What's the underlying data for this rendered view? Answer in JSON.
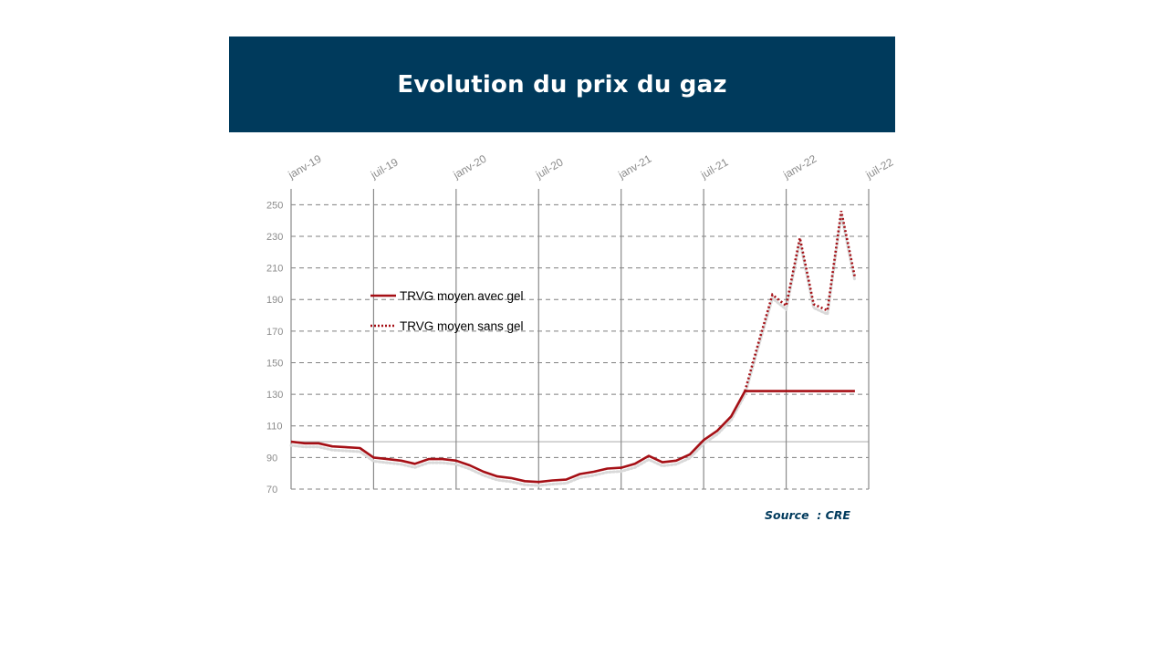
{
  "slide": {
    "title": "Evolution du prix du gaz",
    "source": "Source  : CRE"
  },
  "colors": {
    "banner": "#003a5c",
    "series": "#a50f15",
    "shadow": "#d9d9d9",
    "grid": "#7f7f7f",
    "tick_text": "#8c8c8c"
  },
  "chart_data": {
    "type": "line",
    "title": "",
    "xlabel": "",
    "ylabel": "",
    "x_ticks": [
      "janv-19",
      "juil-19",
      "janv-20",
      "juil-20",
      "janv-21",
      "juil-21",
      "janv-22",
      "juil-22"
    ],
    "x_range": [
      "2019-01",
      "2022-07"
    ],
    "ylim": [
      70,
      260
    ],
    "y_ticks": [
      70,
      90,
      110,
      130,
      150,
      170,
      190,
      210,
      230,
      250
    ],
    "reference_line": 100,
    "grid": true,
    "x_axis_position": "top",
    "legend_position": "left-center",
    "series": [
      {
        "name": "TRVG moyen avec gel",
        "style": "solid",
        "points": [
          [
            "2019-01",
            100
          ],
          [
            "2019-02",
            99
          ],
          [
            "2019-03",
            99
          ],
          [
            "2019-04",
            97
          ],
          [
            "2019-05",
            96.5
          ],
          [
            "2019-06",
            96
          ],
          [
            "2019-07",
            90
          ],
          [
            "2019-08",
            89
          ],
          [
            "2019-09",
            88
          ],
          [
            "2019-10",
            86
          ],
          [
            "2019-11",
            89
          ],
          [
            "2019-12",
            89
          ],
          [
            "2020-01",
            88
          ],
          [
            "2020-02",
            85
          ],
          [
            "2020-03",
            81
          ],
          [
            "2020-04",
            78
          ],
          [
            "2020-05",
            77
          ],
          [
            "2020-06",
            75
          ],
          [
            "2020-07",
            74.5
          ],
          [
            "2020-08",
            75.5
          ],
          [
            "2020-09",
            76
          ],
          [
            "2020-10",
            79.5
          ],
          [
            "2020-11",
            81
          ],
          [
            "2020-12",
            83
          ],
          [
            "2021-01",
            83.5
          ],
          [
            "2021-02",
            86
          ],
          [
            "2021-03",
            91
          ],
          [
            "2021-04",
            87
          ],
          [
            "2021-05",
            88
          ],
          [
            "2021-06",
            92
          ],
          [
            "2021-07",
            101
          ],
          [
            "2021-08",
            107
          ],
          [
            "2021-09",
            116
          ],
          [
            "2021-10",
            132
          ],
          [
            "2021-11",
            132
          ],
          [
            "2021-12",
            132
          ],
          [
            "2022-01",
            132
          ],
          [
            "2022-02",
            132
          ],
          [
            "2022-03",
            132
          ],
          [
            "2022-04",
            132
          ],
          [
            "2022-05",
            132
          ],
          [
            "2022-06",
            132
          ]
        ]
      },
      {
        "name": "TRVG moyen sans gel",
        "style": "dotted",
        "points": [
          [
            "2021-10",
            132
          ],
          [
            "2021-11",
            163
          ],
          [
            "2021-12",
            193
          ],
          [
            "2022-01",
            186
          ],
          [
            "2022-02",
            229
          ],
          [
            "2022-03",
            187
          ],
          [
            "2022-04",
            183
          ],
          [
            "2022-05",
            246
          ],
          [
            "2022-06",
            204
          ]
        ]
      }
    ]
  }
}
